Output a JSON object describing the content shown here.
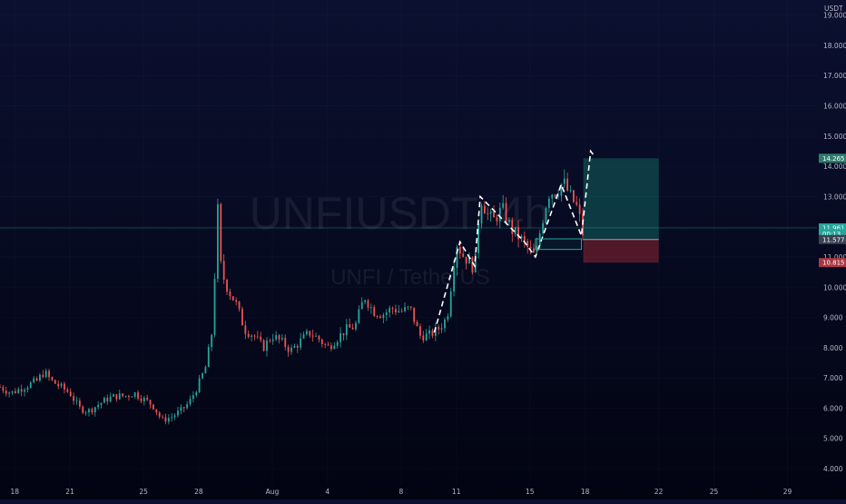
{
  "chart_data": {
    "type": "candlestick",
    "title": "UNFIUSDT, 4h",
    "subtitle": "UNFI / TetherUS",
    "y_unit": "USDT",
    "ylim": [
      3.4,
      19.5
    ],
    "y_ticks": [
      "4.000",
      "5.000",
      "6.000",
      "7.000",
      "8.000",
      "9.000",
      "10.000",
      "11.000",
      "12.000",
      "13.000",
      "14.000",
      "15.000",
      "16.000",
      "17.000",
      "18.000",
      "19.000"
    ],
    "x_ticks": [
      "18",
      "21",
      "25",
      "28",
      "Aug",
      "4",
      "8",
      "11",
      "15",
      "18",
      "22",
      "25",
      "29"
    ],
    "x_tick_days": [
      18,
      21,
      25,
      28,
      32,
      35,
      39,
      42,
      46,
      49,
      53,
      56,
      60
    ],
    "x_range_days": [
      17.2,
      61.6
    ],
    "series_path": [
      [
        17.2,
        6.7
      ],
      [
        17.8,
        6.5
      ],
      [
        18.5,
        6.7
      ],
      [
        19.2,
        6.9
      ],
      [
        19.6,
        7.2
      ],
      [
        20.0,
        6.9
      ],
      [
        20.5,
        6.7
      ],
      [
        21.0,
        6.5
      ],
      [
        21.5,
        6.0
      ],
      [
        22.0,
        5.9
      ],
      [
        22.5,
        6.1
      ],
      [
        23.0,
        6.3
      ],
      [
        23.5,
        6.4
      ],
      [
        24.0,
        6.4
      ],
      [
        24.5,
        6.5
      ],
      [
        25.0,
        6.3
      ],
      [
        25.5,
        6.1
      ],
      [
        26.0,
        5.6
      ],
      [
        26.5,
        5.7
      ],
      [
        27.0,
        5.9
      ],
      [
        27.5,
        6.2
      ],
      [
        28.0,
        6.8
      ],
      [
        28.4,
        7.4
      ],
      [
        28.8,
        8.8
      ],
      [
        29.0,
        13.4
      ],
      [
        29.1,
        11.0
      ],
      [
        29.4,
        10.2
      ],
      [
        29.7,
        9.8
      ],
      [
        30.0,
        9.5
      ],
      [
        30.5,
        8.6
      ],
      [
        31.0,
        8.4
      ],
      [
        31.5,
        8.0
      ],
      [
        32.0,
        8.4
      ],
      [
        32.5,
        8.2
      ],
      [
        33.0,
        7.9
      ],
      [
        33.5,
        8.2
      ],
      [
        34.0,
        8.5
      ],
      [
        34.5,
        8.3
      ],
      [
        35.0,
        8.0
      ],
      [
        35.5,
        8.3
      ],
      [
        36.0,
        8.6
      ],
      [
        36.5,
        8.7
      ],
      [
        37.0,
        9.7
      ],
      [
        37.5,
        9.2
      ],
      [
        38.0,
        9.1
      ],
      [
        38.5,
        9.3
      ],
      [
        39.0,
        9.2
      ],
      [
        39.5,
        9.3
      ],
      [
        40.0,
        8.4
      ],
      [
        40.5,
        8.4
      ],
      [
        41.0,
        8.6
      ],
      [
        41.5,
        9.0
      ],
      [
        42.0,
        11.5
      ],
      [
        42.3,
        11.1
      ],
      [
        42.6,
        10.9
      ],
      [
        43.0,
        10.6
      ],
      [
        43.3,
        13.0
      ],
      [
        43.7,
        12.4
      ],
      [
        44.0,
        12.2
      ],
      [
        44.5,
        12.6
      ],
      [
        45.0,
        11.9
      ],
      [
        45.5,
        11.6
      ],
      [
        46.0,
        11.2
      ],
      [
        46.3,
        11.0
      ],
      [
        46.6,
        12.0
      ],
      [
        47.0,
        13.1
      ],
      [
        47.5,
        13.2
      ],
      [
        47.8,
        13.5
      ],
      [
        48.2,
        13.0
      ],
      [
        48.6,
        12.6
      ],
      [
        48.9,
        11.7
      ]
    ],
    "pattern_lines": [
      [
        [
          40.8,
          8.5
        ],
        [
          42.2,
          11.5
        ],
        [
          43.0,
          10.7
        ],
        [
          43.3,
          13.0
        ],
        [
          45.7,
          11.5
        ],
        [
          46.3,
          11.0
        ],
        [
          47.7,
          13.4
        ],
        [
          48.8,
          11.7
        ],
        [
          49.3,
          14.5
        ],
        [
          49.55,
          14.3
        ]
      ]
    ],
    "support_box": {
      "x0": 46.3,
      "x1": 48.8,
      "y0": 11.25,
      "y1": 11.6
    },
    "position": {
      "x0": 48.9,
      "x1": 53.0,
      "entry": 11.577,
      "target": 14.265,
      "stop": 10.815
    },
    "current_price": 11.577,
    "price_tags": [
      {
        "text": "14.265",
        "value": 14.265,
        "color": "#2e7d6c"
      },
      {
        "text": "11.961",
        "value": 11.961,
        "color": "#26a69a"
      },
      {
        "text": "00:13",
        "value": 11.77,
        "color": "#26a69a"
      },
      {
        "text": "11.577",
        "value": 11.577,
        "color": "#3b4252"
      },
      {
        "text": "10.815",
        "value": 10.815,
        "color": "#a83743"
      }
    ],
    "colors": {
      "up": "#26a69a",
      "down": "#ef5350",
      "pattern": "#ffffff",
      "target_zone": "#0f4a4e",
      "stop_zone": "#5a1a2a"
    }
  }
}
